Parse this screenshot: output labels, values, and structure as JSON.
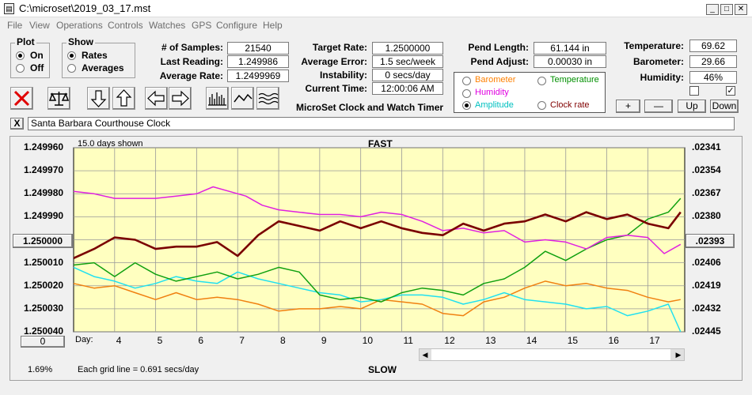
{
  "window": {
    "title": "C:\\microset\\2019_03_17.mst"
  },
  "menu": [
    "File",
    "View",
    "Operations",
    "Controls",
    "Watches",
    "GPS",
    "Configure",
    "Help"
  ],
  "plot_group": {
    "label": "Plot",
    "on": "On",
    "off": "Off",
    "selected": "On"
  },
  "show_group": {
    "label": "Show",
    "rates": "Rates",
    "averages": "Averages",
    "selected": "Rates"
  },
  "stats": {
    "samples_label": "# of Samples:",
    "samples": "21540",
    "last_reading_label": "Last Reading:",
    "last_reading": "1.249986",
    "average_rate_label": "Average Rate:",
    "average_rate": "1.2499969",
    "target_rate_label": "Target Rate:",
    "target_rate": "1.2500000",
    "average_error_label": "Average Error:",
    "average_error": "1.5 sec/week",
    "instability_label": "Instability:",
    "instability": "0 secs/day",
    "current_time_label": "Current Time:",
    "current_time": "12:00:06 AM",
    "pend_length_label": "Pend Length:",
    "pend_length": "61.144 in",
    "pend_adjust_label": "Pend Adjust:",
    "pend_adjust": "0.00030 in",
    "temperature_label": "Temperature:",
    "temperature": "69.62",
    "barometer_label": "Barometer:",
    "barometer": "29.66",
    "humidity_label": "Humidity:",
    "humidity": "46%"
  },
  "app_name": "MicroSet Clock and Watch Timer",
  "sensor_radio": {
    "barometer": "Barometer",
    "temperature": "Temperature",
    "humidity": "Humidity",
    "amplitude": "Amplitude",
    "clock_rate": "Clock rate",
    "selected": "Amplitude"
  },
  "colors": {
    "barometer": "#ff8000",
    "temperature": "#009000",
    "humidity": "#e000e0",
    "amplitude": "#00c0c0",
    "clock_rate": "#800000",
    "chart_bg": "#ffffc0",
    "clock_line": "#7a0000",
    "humidity_line": "#e020e0",
    "temperature_line": "#10a010",
    "amplitude_line": "#20e0f0",
    "barometer_line": "#f08010"
  },
  "adjust_buttons": {
    "plus": "+",
    "minus": "—",
    "up": "Up",
    "down": "Down"
  },
  "checkboxes": {
    "left": false,
    "right": true
  },
  "clock_name": "Santa Barbara Courthouse Clock",
  "close_label": "X",
  "chart": {
    "days_shown": "15.0 days shown",
    "top_label": "FAST",
    "bottom_label": "SLOW",
    "left_center_button": "1.250000",
    "right_center_button": ".02393",
    "bottom_left_button": "0",
    "zoom_pct": "1.69%",
    "grid_note": "Each grid line = 0.691 secs/day",
    "day_prefix": "Day:"
  },
  "chart_data": {
    "type": "line",
    "left_axis_ticks": [
      "1.249960",
      "1.249970",
      "1.249980",
      "1.249990",
      "1.250000",
      "1.250010",
      "1.250020",
      "1.250030",
      "1.250040"
    ],
    "right_axis_ticks": [
      ".02341",
      ".02354",
      ".02367",
      ".02380",
      ".02393",
      ".02406",
      ".02419",
      ".02432",
      ".02445"
    ],
    "x_ticks": [
      "4",
      "5",
      "6",
      "7",
      "8",
      "9",
      "10",
      "11",
      "12",
      "13",
      "14",
      "15",
      "16",
      "17"
    ],
    "xlim": [
      3.0,
      17.9
    ],
    "series": [
      {
        "name": "Clock rate",
        "axis": "left",
        "x": [
          3.0,
          3.5,
          4.0,
          4.5,
          5.0,
          5.5,
          6.0,
          6.5,
          7.0,
          7.5,
          8.0,
          8.5,
          9.0,
          9.5,
          10.0,
          10.5,
          11.0,
          11.5,
          12.0,
          12.5,
          13.0,
          13.5,
          14.0,
          14.5,
          15.0,
          15.5,
          16.0,
          16.5,
          17.0,
          17.5,
          17.8
        ],
        "y": [
          1.250008,
          1.250004,
          1.249999,
          1.25,
          1.250004,
          1.250003,
          1.250003,
          1.250001,
          1.250007,
          1.249998,
          1.249992,
          1.249994,
          1.249996,
          1.249992,
          1.249995,
          1.249992,
          1.249995,
          1.249997,
          1.249998,
          1.249993,
          1.249996,
          1.249993,
          1.249992,
          1.249989,
          1.249992,
          1.249988,
          1.249991,
          1.249989,
          1.249993,
          1.249995,
          1.249988
        ]
      },
      {
        "name": "Humidity",
        "axis": "left",
        "x": [
          3.0,
          3.5,
          4.0,
          4.5,
          5.0,
          5.5,
          6.0,
          6.4,
          6.8,
          7.2,
          7.6,
          8.0,
          8.5,
          9.0,
          9.5,
          10.0,
          10.5,
          11.0,
          11.5,
          12.0,
          12.5,
          13.0,
          13.5,
          14.0,
          14.5,
          15.0,
          15.5,
          16.0,
          16.5,
          17.0,
          17.4,
          17.8
        ],
        "y": [
          1.249979,
          1.24998,
          1.249982,
          1.249982,
          1.249982,
          1.249981,
          1.24998,
          1.249977,
          1.249979,
          1.249981,
          1.249985,
          1.249987,
          1.249988,
          1.249989,
          1.249989,
          1.24999,
          1.249988,
          1.249989,
          1.249992,
          1.249996,
          1.249995,
          1.249997,
          1.249996,
          1.250001,
          1.25,
          1.250001,
          1.250004,
          1.249999,
          1.249998,
          1.249999,
          1.250006,
          1.250002
        ]
      },
      {
        "name": "Temperature",
        "axis": "left",
        "x": [
          3.0,
          3.5,
          4.0,
          4.5,
          5.0,
          5.5,
          6.0,
          6.5,
          7.0,
          7.5,
          8.0,
          8.5,
          9.0,
          9.5,
          10.0,
          10.5,
          11.0,
          11.5,
          12.0,
          12.5,
          13.0,
          13.5,
          14.0,
          14.5,
          15.0,
          15.5,
          16.0,
          16.5,
          17.0,
          17.5,
          17.8
        ],
        "y": [
          1.250011,
          1.25001,
          1.250016,
          1.25001,
          1.250015,
          1.250018,
          1.250016,
          1.250014,
          1.250017,
          1.250015,
          1.250012,
          1.250014,
          1.250024,
          1.250026,
          1.250025,
          1.250027,
          1.250023,
          1.250021,
          1.250022,
          1.250024,
          1.250019,
          1.250017,
          1.250012,
          1.250005,
          1.250009,
          1.250004,
          1.25,
          1.249998,
          1.249991,
          1.249988,
          1.249982
        ]
      },
      {
        "name": "Amplitude",
        "axis": "left",
        "x": [
          3.0,
          3.5,
          4.0,
          4.5,
          5.0,
          5.5,
          6.0,
          6.5,
          7.0,
          7.5,
          8.0,
          8.5,
          9.0,
          9.5,
          10.0,
          10.5,
          11.0,
          11.5,
          12.0,
          12.5,
          13.0,
          13.5,
          14.0,
          14.5,
          15.0,
          15.5,
          16.0,
          16.5,
          17.0,
          17.5,
          17.8
        ],
        "y": [
          1.250012,
          1.250016,
          1.250018,
          1.250021,
          1.250019,
          1.250016,
          1.250018,
          1.250019,
          1.250014,
          1.250017,
          1.250019,
          1.250021,
          1.250023,
          1.250024,
          1.250027,
          1.250026,
          1.250024,
          1.250024,
          1.250025,
          1.250028,
          1.250026,
          1.250023,
          1.250026,
          1.250027,
          1.250028,
          1.25003,
          1.250029,
          1.250033,
          1.250031,
          1.250028,
          1.25004
        ]
      },
      {
        "name": "Barometer",
        "axis": "left",
        "x": [
          3.0,
          3.5,
          4.0,
          4.5,
          5.0,
          5.5,
          6.0,
          6.5,
          7.0,
          7.5,
          8.0,
          8.5,
          9.0,
          9.5,
          10.0,
          10.5,
          11.0,
          11.5,
          12.0,
          12.5,
          13.0,
          13.5,
          14.0,
          14.5,
          15.0,
          15.5,
          16.0,
          16.5,
          17.0,
          17.5,
          17.8
        ],
        "y": [
          1.250019,
          1.250021,
          1.25002,
          1.250023,
          1.250026,
          1.250023,
          1.250026,
          1.250025,
          1.250026,
          1.250028,
          1.250031,
          1.25003,
          1.25003,
          1.250029,
          1.25003,
          1.250026,
          1.250027,
          1.250028,
          1.250032,
          1.250033,
          1.250027,
          1.250025,
          1.250021,
          1.250018,
          1.25002,
          1.250019,
          1.250021,
          1.250022,
          1.250025,
          1.250027,
          1.250026
        ]
      }
    ]
  }
}
